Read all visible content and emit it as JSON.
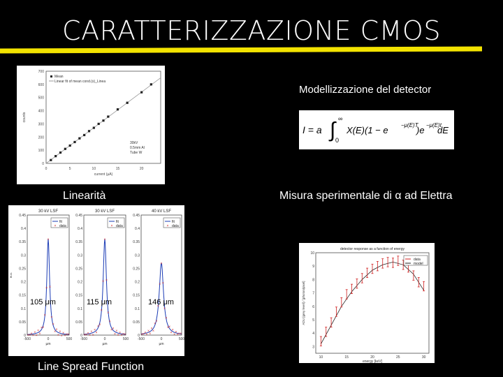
{
  "title": "CARATTERIZZAZIONE CMOS",
  "labels": {
    "linearity": "Linearità",
    "model": "Modellizzazione del detector",
    "measure": "Misura sperimentale di α ad Elettra",
    "lsf": "Line Spread Function"
  },
  "colors": {
    "accent_bar": "#f3e300",
    "background": "#000000",
    "data_red": "#d02020",
    "fit_blue": "#1a3bb5"
  },
  "linearity_plot": {
    "legend": [
      "Mean",
      "Linear fit of mean cond.(s)_Linea"
    ],
    "xlabel": "current (µA)",
    "ylabel": "counts",
    "x_ticks": [
      "0",
      "5",
      "10",
      "15",
      "20"
    ],
    "y_ticks": [
      "0",
      "100",
      "200",
      "300",
      "400",
      "500",
      "600",
      "700"
    ],
    "note": [
      "30kV",
      "0.5mm Al",
      "Tube W"
    ],
    "chart_data": {
      "type": "scatter",
      "x": [
        1,
        2,
        3,
        4,
        5,
        6,
        7,
        8,
        9,
        10,
        11,
        12,
        13,
        15,
        17,
        20,
        22
      ],
      "y": [
        25,
        55,
        82,
        110,
        135,
        162,
        190,
        215,
        245,
        270,
        300,
        325,
        355,
        410,
        460,
        540,
        600
      ],
      "xlim": [
        0,
        24
      ],
      "ylim": [
        0,
        700
      ]
    }
  },
  "formula": {
    "lhs": "I = a",
    "upper": "∞",
    "lower": "0",
    "integrand": "X(E)(1 − e",
    "exp1": "−μ(E)T",
    "mid": ")e",
    "exp2": "−μ(E)t",
    "dE": "dE"
  },
  "lsf_plots": [
    {
      "title": "30 kV LSF",
      "label": "105 μm",
      "sigma": 1.0
    },
    {
      "title": "30 kV LSF",
      "label": "115 μm",
      "sigma": 1.15
    },
    {
      "title": "40 kV LSF",
      "label": "146 μm",
      "sigma": 1.6
    }
  ],
  "lsf_common": {
    "legend_fit": "fit",
    "legend_data": "data",
    "ylabel": "a.u.",
    "xlabel": "µm",
    "y_ticks": [
      "0",
      "0.05",
      "0.1",
      "0.15",
      "0.2",
      "0.25",
      "0.3",
      "0.35",
      "0.4",
      "0.45"
    ],
    "x_ticks": [
      "-500",
      "0",
      "500"
    ]
  },
  "alpha_plot": {
    "title": "detector response as a function of energy",
    "xlabel": "energy [keV]",
    "ylabel": "ADU [grey level] / [photon/pixel]",
    "legend": [
      "data",
      "model"
    ],
    "x_ticks": [
      "10",
      "15",
      "20",
      "25",
      "30"
    ],
    "y_ticks": [
      "3",
      "4",
      "5",
      "6",
      "7",
      "8",
      "9",
      "10"
    ],
    "chart_data": {
      "type": "line",
      "series": [
        {
          "name": "data",
          "x": [
            10,
            11,
            12,
            13,
            14,
            15,
            16,
            17,
            18,
            19,
            20,
            21,
            22,
            23,
            24,
            25,
            26,
            27,
            28,
            29,
            30
          ],
          "y": [
            3.4,
            4.1,
            4.8,
            5.6,
            6.3,
            6.9,
            7.3,
            7.7,
            8.1,
            8.5,
            8.8,
            9.0,
            9.2,
            9.3,
            9.25,
            9.4,
            9.1,
            8.9,
            8.3,
            7.8,
            7.5
          ]
        },
        {
          "name": "model",
          "x": [
            10,
            12,
            14,
            16,
            18,
            20,
            22,
            24,
            26,
            28,
            30
          ],
          "y": [
            3.2,
            4.6,
            6.0,
            7.1,
            8.0,
            8.7,
            9.1,
            9.3,
            9.1,
            8.4,
            7.2
          ]
        }
      ],
      "xlim": [
        9,
        31
      ],
      "ylim": [
        2.5,
        10
      ]
    }
  }
}
